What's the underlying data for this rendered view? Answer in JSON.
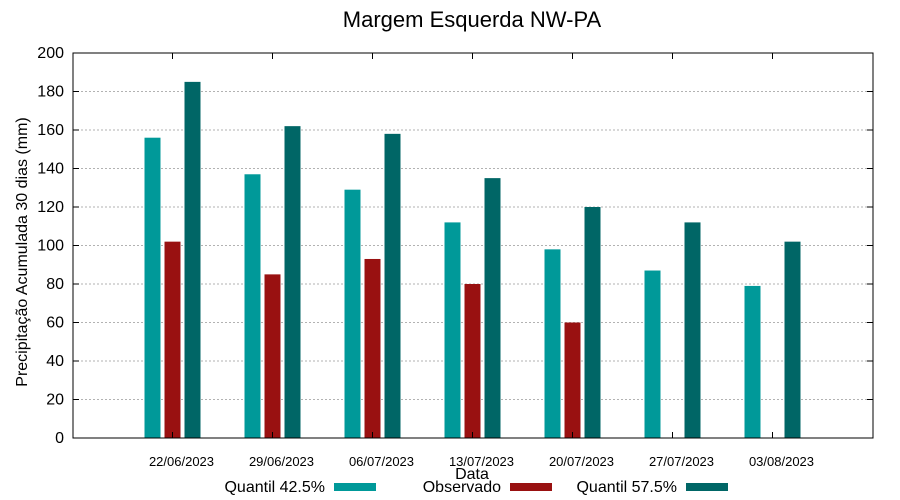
{
  "chart_data": {
    "type": "bar",
    "title": "Margem Esquerda NW-PA",
    "xlabel": "Data",
    "ylabel": "Precipitação Acumulada 30 dias (mm)",
    "ylim": [
      0,
      200
    ],
    "yticks": [
      0,
      20,
      40,
      60,
      80,
      100,
      120,
      140,
      160,
      180,
      200
    ],
    "grid": true,
    "legend": "bottom",
    "categories": [
      "22/06/2023",
      "29/06/2023",
      "06/07/2023",
      "13/07/2023",
      "20/07/2023",
      "27/07/2023",
      "03/08/2023"
    ],
    "series": [
      {
        "name": "Quantil 42.5%",
        "color": "#009999",
        "values": [
          156,
          137,
          129,
          112,
          98,
          87,
          79
        ]
      },
      {
        "name": "Observado",
        "color": "#991111",
        "values": [
          102,
          85,
          93,
          80,
          60,
          null,
          null
        ]
      },
      {
        "name": "Quantil 57.5%",
        "color": "#006666",
        "values": [
          185,
          162,
          158,
          135,
          120,
          112,
          102
        ]
      }
    ]
  }
}
